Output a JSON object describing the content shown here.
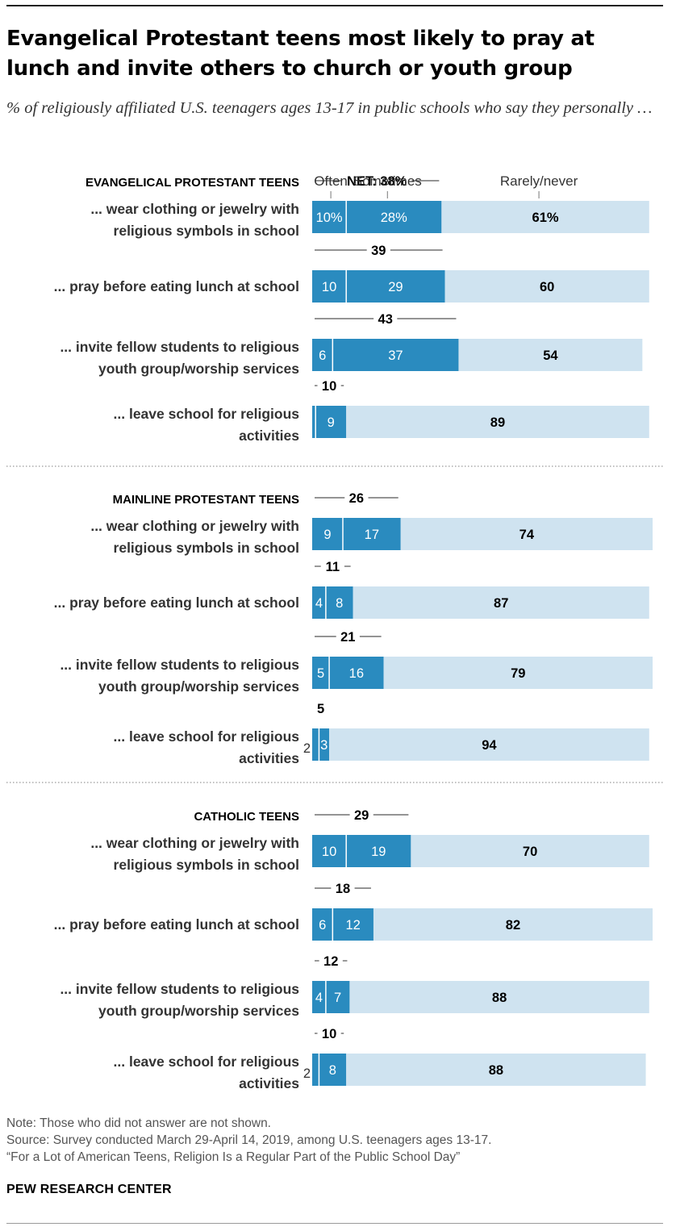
{
  "title": "Evangelical Protestant teens most likely to pray at lunch and invite others to church or youth group",
  "subtitle": "% of religiously affiliated U.S. teenagers ages 13-17 in public schools who say they personally …",
  "colors": {
    "often": "#2a8bbf",
    "sometimes": "#2a8bbf",
    "rarely": "#cfe3f0",
    "divider": "#ffffff",
    "net_line": "#555555"
  },
  "chart_data": {
    "type": "bar",
    "orientation": "horizontal",
    "stacked": true,
    "xlim": [
      0,
      100
    ],
    "series_legend": [
      "Often",
      "Sometimes",
      "Rarely/never"
    ],
    "net_prefix": "NET: ",
    "groups": [
      {
        "name": "EVANGELICAL PROTESTANT TEENS",
        "rows": [
          {
            "label": [
              "... wear clothing or jewelry with",
              "religious symbols in school"
            ],
            "often": 10,
            "sometimes": 28,
            "rarely": 61,
            "net": 38,
            "often_label": "10%",
            "sometimes_label": "28%",
            "rarely_label": "61%",
            "net_label": "38%"
          },
          {
            "label": [
              "... pray before eating lunch at school"
            ],
            "often": 10,
            "sometimes": 29,
            "rarely": 60,
            "net": 39,
            "often_label": "10",
            "sometimes_label": "29",
            "rarely_label": "60",
            "net_label": "39"
          },
          {
            "label": [
              "... invite fellow students to religious",
              "youth group/worship services"
            ],
            "often": 6,
            "sometimes": 37,
            "rarely": 54,
            "net": 43,
            "often_label": "6",
            "sometimes_label": "37",
            "rarely_label": "54",
            "net_label": "43"
          },
          {
            "label": [
              "... leave school for religious",
              "activities"
            ],
            "often": 1,
            "sometimes": 9,
            "rarely": 89,
            "net": 10,
            "often_label": "",
            "sometimes_label": "9",
            "rarely_label": "89",
            "net_label": "10"
          }
        ]
      },
      {
        "name": "MAINLINE PROTESTANT TEENS",
        "rows": [
          {
            "label": [
              "... wear clothing or jewelry with",
              "religious symbols in school"
            ],
            "often": 9,
            "sometimes": 17,
            "rarely": 74,
            "net": 26,
            "often_label": "9",
            "sometimes_label": "17",
            "rarely_label": "74",
            "net_label": "26"
          },
          {
            "label": [
              "... pray before eating lunch at school"
            ],
            "often": 4,
            "sometimes": 8,
            "rarely": 87,
            "net": 11,
            "often_label": "4",
            "sometimes_label": "8",
            "rarely_label": "87",
            "net_label": "11"
          },
          {
            "label": [
              "... invite fellow students to religious",
              "youth group/worship services"
            ],
            "often": 5,
            "sometimes": 16,
            "rarely": 79,
            "net": 21,
            "often_label": "5",
            "sometimes_label": "16",
            "rarely_label": "79",
            "net_label": "21"
          },
          {
            "label": [
              "... leave school for religious",
              "activities"
            ],
            "often": 2,
            "sometimes": 3,
            "rarely": 94,
            "net": 5,
            "often_label": "2",
            "sometimes_label": "3",
            "rarely_label": "94",
            "net_label": "5"
          }
        ]
      },
      {
        "name": "CATHOLIC TEENS",
        "rows": [
          {
            "label": [
              "... wear clothing or jewelry with",
              "religious symbols in school"
            ],
            "often": 10,
            "sometimes": 19,
            "rarely": 70,
            "net": 29,
            "often_label": "10",
            "sometimes_label": "19",
            "rarely_label": "70",
            "net_label": "29"
          },
          {
            "label": [
              "... pray before eating lunch at school"
            ],
            "often": 6,
            "sometimes": 12,
            "rarely": 82,
            "net": 18,
            "often_label": "6",
            "sometimes_label": "12",
            "rarely_label": "82",
            "net_label": "18"
          },
          {
            "label": [
              "... invite fellow students to religious",
              "youth group/worship services"
            ],
            "often": 4,
            "sometimes": 7,
            "rarely": 88,
            "net": 12,
            "often_label": "4",
            "sometimes_label": "7",
            "rarely_label": "88",
            "net_label": "12"
          },
          {
            "label": [
              "... leave school for religious",
              "activities"
            ],
            "often": 2,
            "sometimes": 8,
            "rarely": 88,
            "net": 10,
            "often_label": "2",
            "sometimes_label": "8",
            "rarely_label": "88",
            "net_label": "10"
          }
        ]
      }
    ]
  },
  "notes": {
    "note": "Note: Those who did not answer are not shown.",
    "source": "Source: Survey conducted March 29-April 14, 2019, among U.S. teenagers ages 13-17.",
    "report": "“For a Lot of American Teens, Religion Is a Regular Part of the Public School Day”"
  },
  "brand": "PEW RESEARCH CENTER"
}
